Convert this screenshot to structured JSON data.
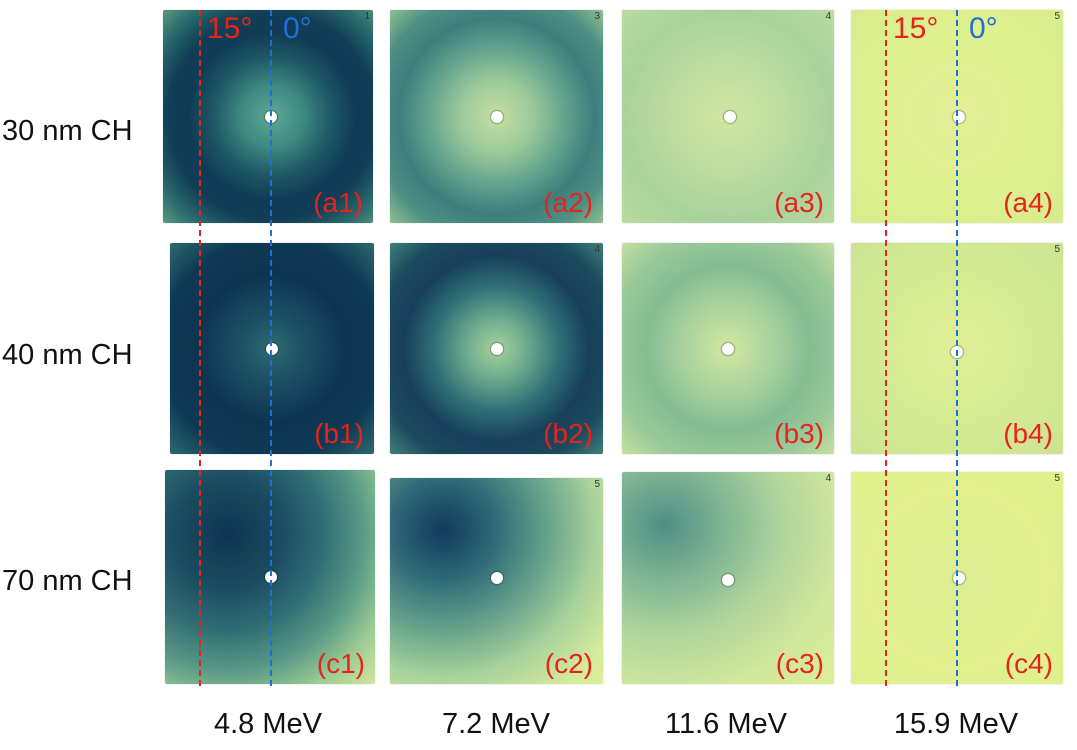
{
  "rows": [
    {
      "label": "30 nm CH",
      "panels": [
        "(a1)",
        "(a2)",
        "(a3)",
        "(a4)"
      ],
      "corner_nums": [
        "1",
        "3",
        "4",
        "5"
      ]
    },
    {
      "label": "40 nm CH",
      "panels": [
        "(b1)",
        "(b2)",
        "(b3)",
        "(b4)"
      ],
      "corner_nums": [
        "",
        "4",
        "",
        "5"
      ]
    },
    {
      "label": "70 nm CH",
      "panels": [
        "(c1)",
        "(c2)",
        "(c3)",
        "(c4)"
      ],
      "corner_nums": [
        "",
        "5",
        "4",
        "5"
      ]
    }
  ],
  "columns": [
    "4.8 MeV",
    "7.2 MeV",
    "11.6 MeV",
    "15.9 MeV"
  ],
  "angles": {
    "red_label": "15°",
    "blue_label": "0°"
  },
  "colors": {
    "red": "#e8231c",
    "blue": "#1f6fd6",
    "film_base": "#dcef9c"
  }
}
